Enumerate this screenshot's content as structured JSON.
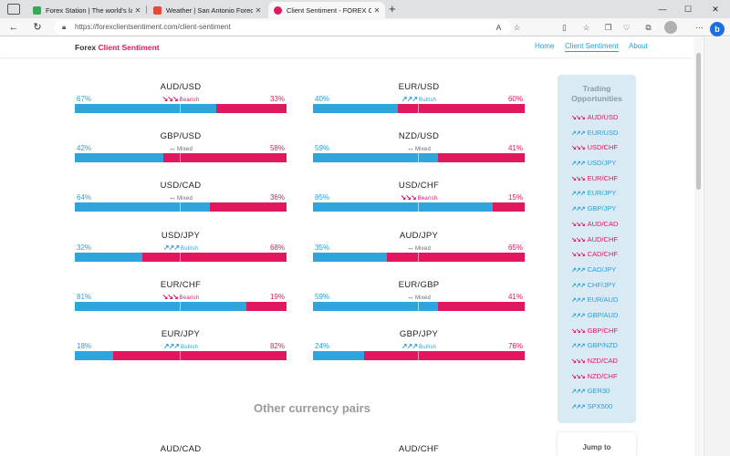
{
  "browser": {
    "tabs": [
      {
        "title": "Forex Station | The world's largest",
        "favicon_color": "#3aa757"
      },
      {
        "title": "Weather | San Antonio Forecast",
        "favicon_color": "#e04b3a"
      },
      {
        "title": "Client Sentiment - FOREX Client",
        "favicon_color": "#e0185f",
        "active": true
      }
    ],
    "new_tab_symbol": "+",
    "url": "https://forexclientsentiment.com/client-sentiment",
    "win_controls": [
      "—",
      "☐",
      "✕"
    ]
  },
  "site": {
    "brand_part1": "Forex",
    "brand_part2": "Client Sentiment",
    "menu": [
      "Home",
      "Client Sentiment",
      "About"
    ]
  },
  "pairs": [
    {
      "name": "AUD/USD",
      "long": "67%",
      "short": "33%",
      "long_fraction": 0.67,
      "signal": "Bearish",
      "arrows": "↘↘↘"
    },
    {
      "name": "EUR/USD",
      "long": "40%",
      "short": "60%",
      "long_fraction": 0.4,
      "signal": "Bullish",
      "arrows": "↗↗↗"
    },
    {
      "name": "GBP/USD",
      "long": "42%",
      "short": "58%",
      "long_fraction": 0.42,
      "signal": "Mixed",
      "arrows": "↔"
    },
    {
      "name": "NZD/USD",
      "long": "59%",
      "short": "41%",
      "long_fraction": 0.59,
      "signal": "Mixed",
      "arrows": "↔"
    },
    {
      "name": "USD/CAD",
      "long": "64%",
      "short": "36%",
      "long_fraction": 0.64,
      "signal": "Mixed",
      "arrows": "↔"
    },
    {
      "name": "USD/CHF",
      "long": "85%",
      "short": "15%",
      "long_fraction": 0.85,
      "signal": "Bearish",
      "arrows": "↘↘↘"
    },
    {
      "name": "USD/JPY",
      "long": "32%",
      "short": "68%",
      "long_fraction": 0.32,
      "signal": "Bullish",
      "arrows": "↗↗↗"
    },
    {
      "name": "AUD/JPY",
      "long": "35%",
      "short": "65%",
      "long_fraction": 0.35,
      "signal": "Mixed",
      "arrows": "↔"
    },
    {
      "name": "EUR/CHF",
      "long": "81%",
      "short": "19%",
      "long_fraction": 0.81,
      "signal": "Bearish",
      "arrows": "↘↘↘"
    },
    {
      "name": "EUR/GBP",
      "long": "59%",
      "short": "41%",
      "long_fraction": 0.59,
      "signal": "Mixed",
      "arrows": "↔"
    },
    {
      "name": "EUR/JPY",
      "long": "18%",
      "short": "82%",
      "long_fraction": 0.18,
      "signal": "Bullish",
      "arrows": "↗↗↗"
    },
    {
      "name": "GBP/JPY",
      "long": "24%",
      "short": "76%",
      "long_fraction": 0.24,
      "signal": "Bullish",
      "arrows": "↗↗↗"
    }
  ],
  "other_pairs_title": "Other currency pairs",
  "other_pairs_preview": [
    "AUD/CAD",
    "AUD/CHF"
  ],
  "opportunities": {
    "title_line1": "Trading",
    "title_line2": "Opportunities",
    "items": [
      {
        "pair": "AUD/USD",
        "dir": "bear",
        "arrows": "↘↘↘"
      },
      {
        "pair": "EUR/USD",
        "dir": "bull",
        "arrows": "↗↗↗"
      },
      {
        "pair": "USD/CHF",
        "dir": "bear",
        "arrows": "↘↘↘"
      },
      {
        "pair": "USD/JPY",
        "dir": "bull",
        "arrows": "↗↗↗"
      },
      {
        "pair": "EUR/CHF",
        "dir": "bear",
        "arrows": "↘↘↘"
      },
      {
        "pair": "EUR/JPY",
        "dir": "bull",
        "arrows": "↗↗↗"
      },
      {
        "pair": "GBP/JPY",
        "dir": "bull",
        "arrows": "↗↗↗"
      },
      {
        "pair": "AUD/CAD",
        "dir": "bear",
        "arrows": "↘↘↘"
      },
      {
        "pair": "AUD/CHF",
        "dir": "bear",
        "arrows": "↘↘↘"
      },
      {
        "pair": "CAD/CHF",
        "dir": "bear",
        "arrows": "↘↘↘"
      },
      {
        "pair": "CAD/JPY",
        "dir": "bull",
        "arrows": "↗↗↗"
      },
      {
        "pair": "CHF/JPY",
        "dir": "bull",
        "arrows": "↗↗↗"
      },
      {
        "pair": "EUR/AUD",
        "dir": "bull",
        "arrows": "↗↗↗"
      },
      {
        "pair": "GBP/AUD",
        "dir": "bull",
        "arrows": "↗↗↗"
      },
      {
        "pair": "GBP/CHF",
        "dir": "bear",
        "arrows": "↘↘↘"
      },
      {
        "pair": "GBP/NZD",
        "dir": "bull",
        "arrows": "↗↗↗"
      },
      {
        "pair": "NZD/CAD",
        "dir": "bear",
        "arrows": "↘↘↘"
      },
      {
        "pair": "NZD/CHF",
        "dir": "bear",
        "arrows": "↘↘↘"
      },
      {
        "pair": "GER30",
        "dir": "bull",
        "arrows": "↗↗↗"
      },
      {
        "pair": "SPX500",
        "dir": "bull",
        "arrows": "↗↗↗"
      }
    ]
  },
  "jump_label": "Jump to",
  "colors": {
    "long": "#2fa5dc",
    "short": "#e0185f",
    "bull": "#2a9fd6",
    "bear": "#e0185f"
  }
}
